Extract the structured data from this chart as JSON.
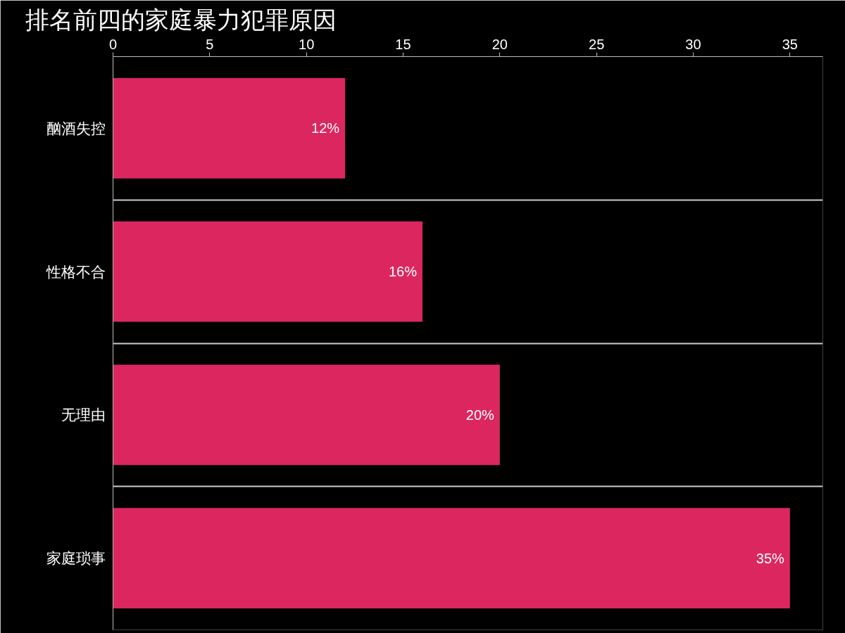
{
  "chart_data": {
    "type": "bar",
    "orientation": "horizontal",
    "title": "排名前四的家庭暴力犯罪原因",
    "categories": [
      "酗酒失控",
      "性格不合",
      "无理由",
      "家庭琐事"
    ],
    "values": [
      12,
      16,
      20,
      35
    ],
    "color": "#dc2660",
    "value_labels": [
      "12%",
      "16%",
      "20%",
      "35%"
    ],
    "xlim": [
      0,
      36.7
    ],
    "xticks": [
      0,
      5,
      10,
      15,
      20,
      25,
      30,
      35
    ],
    "grid": "y"
  }
}
